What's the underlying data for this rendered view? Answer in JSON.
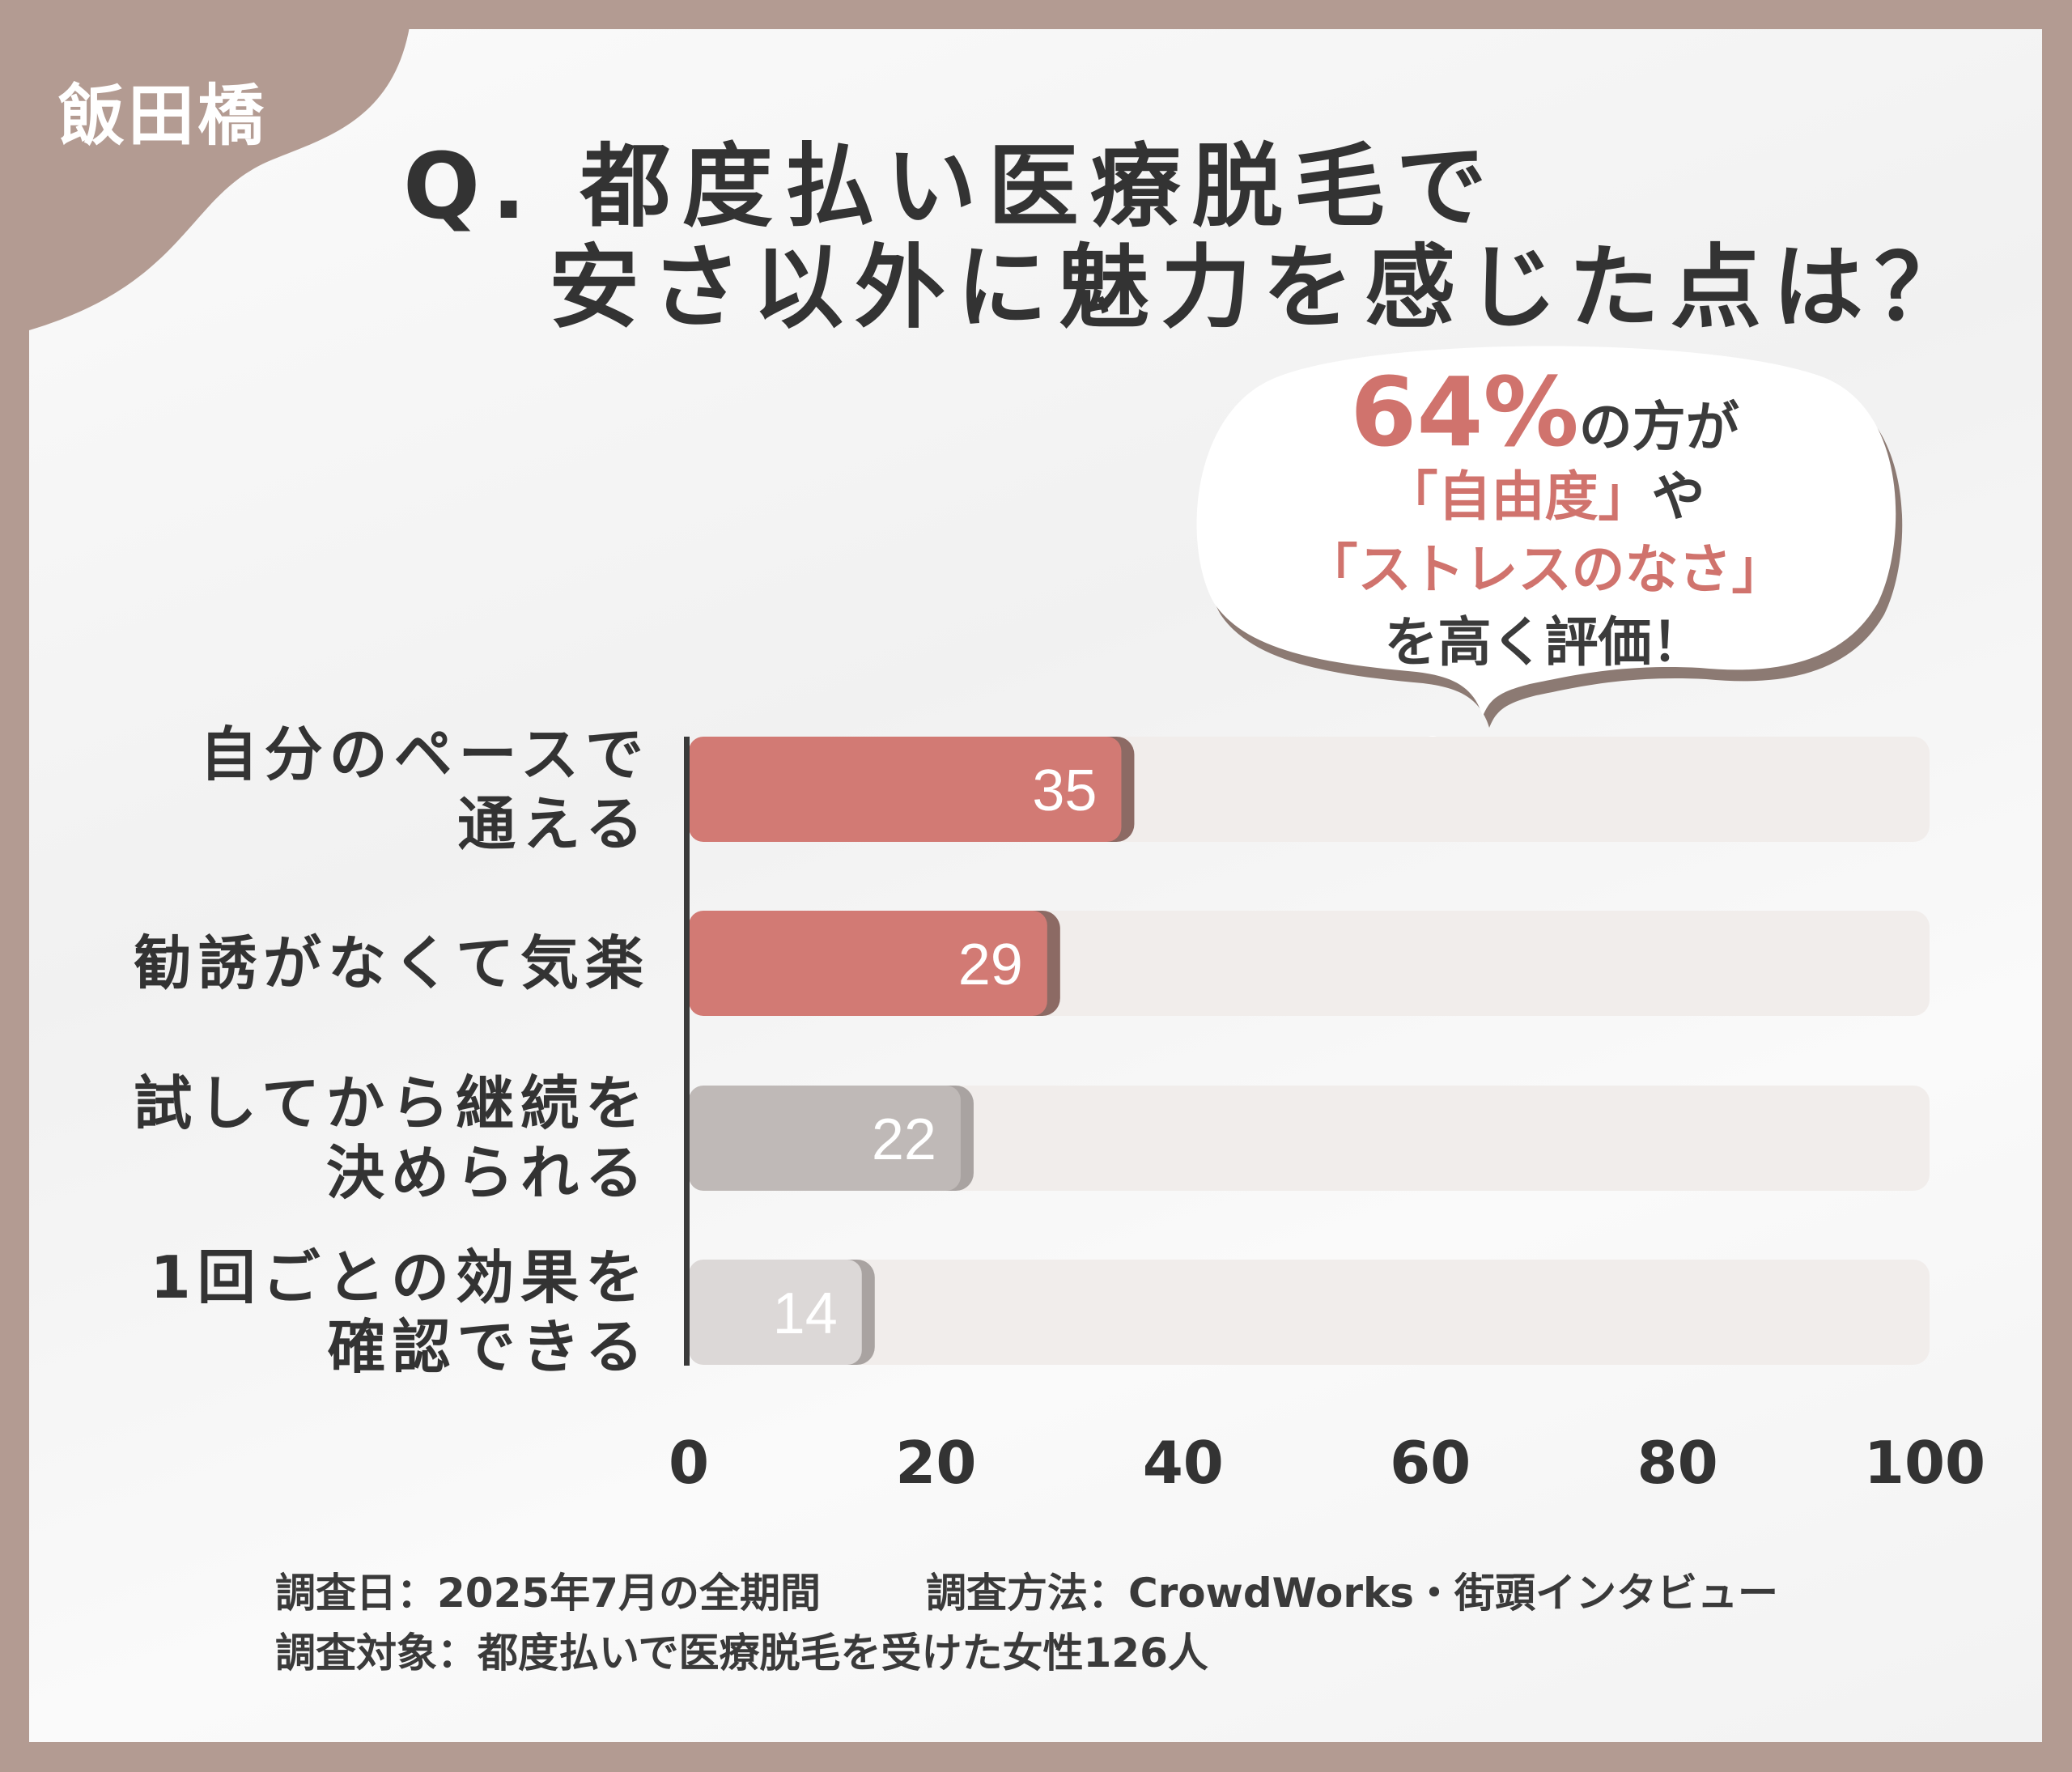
{
  "badge": "飯田橋",
  "title": {
    "line1": "Q. 都度払い医療脱毛で",
    "line2": "安さ以外に魅力を感じた点は？"
  },
  "callout": {
    "pct": "64%",
    "line1_rest": "の方が",
    "line2_red": "「自由度」",
    "line2_rest": "や",
    "line3": "「ストレスのなさ」",
    "line4": "を高く評価！"
  },
  "chart_data": {
    "type": "bar",
    "orientation": "horizontal",
    "categories": [
      "自分のペースで\n通える",
      "勧誘がなくて気楽",
      "試してから継続を\n決められる",
      "1回ごとの効果を\n確認できる"
    ],
    "values": [
      35,
      29,
      22,
      14
    ],
    "xlim": [
      0,
      100
    ],
    "xticks": [
      "0",
      "20",
      "40",
      "60",
      "80",
      "100"
    ],
    "colors": [
      "#d27a74",
      "#d27a74",
      "#bfb9b7",
      "#dcd8d7"
    ],
    "track_color": "#f1edeb",
    "grid": false
  },
  "footer": {
    "line1a": "調査日：2025年7月の全期間",
    "line1b": "調査方法：CrowdWorks・街頭インタビュー",
    "line2": "調査対象：都度払いで医療脱毛を受けた女性126人"
  }
}
